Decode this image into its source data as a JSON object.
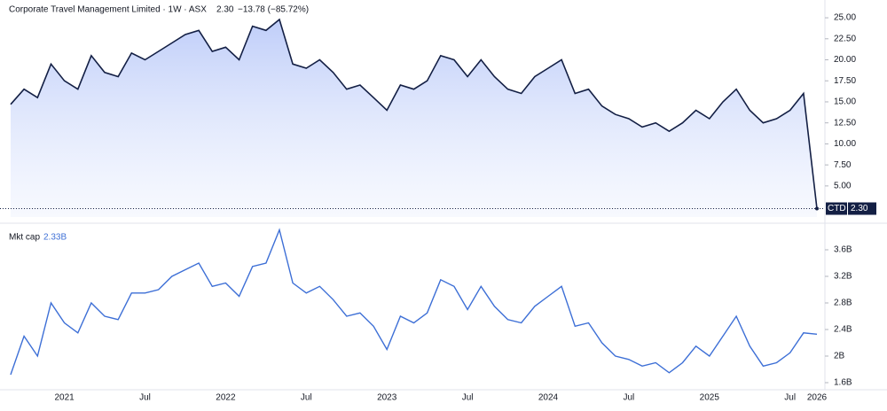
{
  "chart_data": [
    {
      "type": "area",
      "title": "Corporate Travel Management Limited · 1W · ASX",
      "last": "2.30",
      "change": "−13.78 (−85.72%)",
      "symbol": "CTD",
      "last_value_label": "2.30",
      "color": "#131f44",
      "values": [
        14.7,
        16.5,
        15.5,
        19.5,
        17.5,
        16.5,
        20.5,
        18.5,
        18,
        20.8,
        20,
        21,
        22,
        23,
        23.5,
        21,
        21.5,
        20,
        24,
        23.5,
        24.8,
        19.5,
        19,
        20,
        18.5,
        16.5,
        17,
        15.5,
        14,
        17,
        16.5,
        17.5,
        20.5,
        20,
        18,
        20,
        18,
        16.5,
        16,
        18,
        19,
        20,
        16,
        16.5,
        14.5,
        13.5,
        13,
        12,
        12.5,
        11.5,
        12.5,
        14,
        13,
        15,
        16.5,
        14,
        12.5,
        13,
        14,
        16,
        2.3
      ],
      "ylim": [
        1.3,
        25.85
      ],
      "yticks": [
        {
          "value": 5,
          "label": "5.00"
        },
        {
          "value": 7.5,
          "label": "7.50"
        },
        {
          "value": 10,
          "label": "10.00"
        },
        {
          "value": 12.5,
          "label": "12.50"
        },
        {
          "value": 15,
          "label": "15.00"
        },
        {
          "value": 17.5,
          "label": "17.50"
        },
        {
          "value": 20,
          "label": "20.00"
        },
        {
          "value": 22.5,
          "label": "22.50"
        },
        {
          "value": 25,
          "label": "25.00"
        }
      ]
    },
    {
      "type": "line",
      "title": "Mkt cap",
      "last": "2.33B",
      "color": "#3d6fd6",
      "categories": [
        null,
        null,
        null,
        null,
        "2021",
        null,
        null,
        null,
        null,
        null,
        "Jul",
        null,
        null,
        null,
        null,
        null,
        "2022",
        null,
        null,
        null,
        null,
        null,
        "Jul",
        null,
        null,
        null,
        null,
        null,
        "2023",
        null,
        null,
        null,
        null,
        null,
        "Jul",
        null,
        null,
        null,
        null,
        null,
        "2024",
        null,
        null,
        null,
        null,
        null,
        "Jul",
        null,
        null,
        null,
        null,
        null,
        "2025",
        null,
        null,
        null,
        null,
        null,
        "Jul",
        null,
        "2026"
      ],
      "values": [
        1.72,
        2.3,
        2.0,
        2.8,
        2.5,
        2.35,
        2.8,
        2.6,
        2.55,
        2.95,
        2.95,
        3.0,
        3.2,
        3.3,
        3.4,
        3.05,
        3.1,
        2.9,
        3.35,
        3.4,
        3.9,
        3.1,
        2.95,
        3.05,
        2.85,
        2.6,
        2.65,
        2.45,
        2.1,
        2.6,
        2.5,
        2.65,
        3.15,
        3.05,
        2.7,
        3.05,
        2.75,
        2.55,
        2.5,
        2.75,
        2.9,
        3.05,
        2.45,
        2.5,
        2.2,
        2.0,
        1.95,
        1.85,
        1.9,
        1.75,
        1.9,
        2.15,
        2.0,
        2.3,
        2.6,
        2.15,
        1.85,
        1.9,
        2.05,
        2.35,
        2.33
      ],
      "ylim": [
        1.52,
        3.92
      ],
      "yticks": [
        {
          "value": 1.6,
          "label": "1.6B"
        },
        {
          "value": 2,
          "label": "2B"
        },
        {
          "value": 2.4,
          "label": "2.4B"
        },
        {
          "value": 2.8,
          "label": "2.8B"
        },
        {
          "value": 3.2,
          "label": "3.2B"
        },
        {
          "value": 3.6,
          "label": "3.6B"
        }
      ]
    }
  ]
}
